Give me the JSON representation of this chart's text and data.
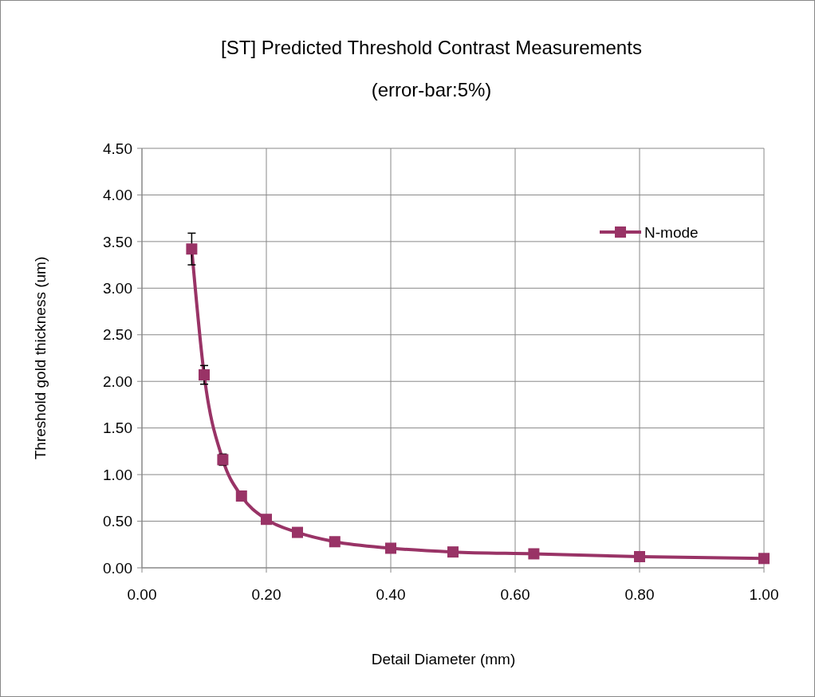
{
  "chart_data": {
    "type": "line",
    "title": "[ST] Predicted Threshold Contrast Measurements",
    "subtitle": "(error-bar:5%)",
    "xlabel": "Detail Diameter (mm)",
    "ylabel": "Threshold gold thickness (um)",
    "x": [
      0.08,
      0.1,
      0.13,
      0.16,
      0.2,
      0.25,
      0.31,
      0.4,
      0.5,
      0.63,
      0.8,
      1.0
    ],
    "series": [
      {
        "name": "N-mode",
        "color": "#993366",
        "values": [
          3.42,
          2.07,
          1.16,
          0.77,
          0.52,
          0.38,
          0.28,
          0.21,
          0.17,
          0.15,
          0.12,
          0.1
        ],
        "errors": [
          0.17,
          0.1,
          0.06,
          null,
          null,
          null,
          null,
          null,
          null,
          null,
          null,
          null
        ]
      }
    ],
    "xlim": [
      0,
      1
    ],
    "xticks": [
      {
        "value": 0,
        "label": "0.00"
      },
      {
        "value": 0.2,
        "label": "0.20"
      },
      {
        "value": 0.4,
        "label": "0.40"
      },
      {
        "value": 0.6,
        "label": "0.60"
      },
      {
        "value": 0.8,
        "label": "0.80"
      },
      {
        "value": 1,
        "label": "1.00"
      }
    ],
    "ylim": [
      0,
      4.5
    ],
    "yticks": [
      {
        "value": 0,
        "label": "0.00"
      },
      {
        "value": 0.5,
        "label": "0.50"
      },
      {
        "value": 1,
        "label": "1.00"
      },
      {
        "value": 1.5,
        "label": "1.50"
      },
      {
        "value": 2,
        "label": "2.00"
      },
      {
        "value": 2.5,
        "label": "2.50"
      },
      {
        "value": 3,
        "label": "3.00"
      },
      {
        "value": 3.5,
        "label": "3.50"
      },
      {
        "value": 4,
        "label": "4.00"
      },
      {
        "value": 4.5,
        "label": "4.50"
      }
    ],
    "grid": true,
    "legend": "top right",
    "marker": "square",
    "line_style": "solid"
  }
}
